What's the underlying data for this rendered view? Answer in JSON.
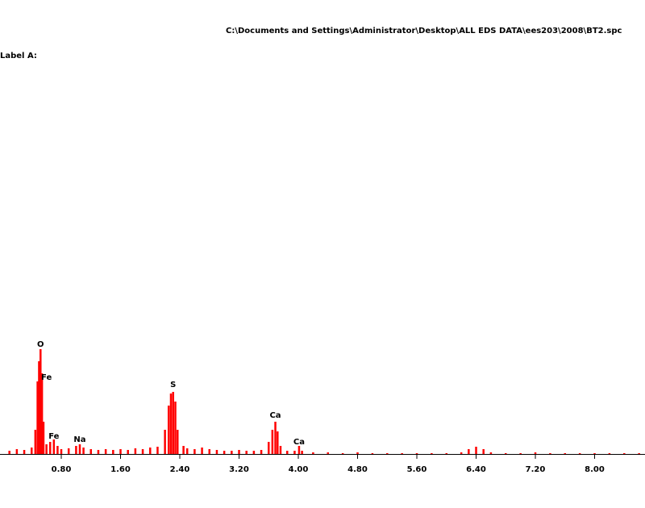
{
  "chart_data": {
    "type": "spectrum",
    "title": "C:\\Documents and Settings\\Administrator\\Desktop\\ALL EDS DATA\\ees203\\2008\\BT2.spc",
    "subtitle": "Label A:",
    "color": "#ff0000",
    "x": [
      0.1,
      0.2,
      0.3,
      0.4,
      0.45,
      0.48,
      0.5,
      0.52,
      0.54,
      0.56,
      0.6,
      0.65,
      0.7,
      0.75,
      0.8,
      0.9,
      1.0,
      1.05,
      1.1,
      1.2,
      1.3,
      1.4,
      1.5,
      1.6,
      1.7,
      1.8,
      1.9,
      2.0,
      2.1,
      2.2,
      2.25,
      2.28,
      2.31,
      2.34,
      2.37,
      2.45,
      2.5,
      2.6,
      2.7,
      2.8,
      2.9,
      3.0,
      3.1,
      3.2,
      3.3,
      3.4,
      3.5,
      3.6,
      3.65,
      3.69,
      3.72,
      3.76,
      3.85,
      3.95,
      4.01,
      4.05,
      4.2,
      4.4,
      4.6,
      4.8,
      5.0,
      5.2,
      5.4,
      5.6,
      5.8,
      6.0,
      6.2,
      6.3,
      6.4,
      6.5,
      6.6,
      6.8,
      7.0,
      7.2,
      7.4,
      7.6,
      7.8,
      8.0,
      8.2,
      8.4,
      8.6
    ],
    "values": [
      4,
      6,
      5,
      8,
      30,
      90,
      115,
      130,
      100,
      40,
      12,
      15,
      18,
      10,
      6,
      7,
      10,
      12,
      8,
      6,
      5,
      6,
      5,
      6,
      5,
      7,
      6,
      8,
      9,
      30,
      60,
      75,
      77,
      65,
      30,
      10,
      7,
      6,
      8,
      6,
      5,
      4,
      4,
      5,
      4,
      4,
      5,
      15,
      30,
      40,
      28,
      10,
      4,
      4,
      10,
      4,
      2,
      2,
      1,
      2,
      1,
      1,
      1,
      1,
      1,
      1,
      2,
      6,
      9,
      6,
      2,
      1,
      1,
      2,
      1,
      1,
      1,
      1,
      1,
      1,
      1
    ],
    "peak_labels": [
      {
        "label": "O",
        "x": 0.52,
        "y": 136
      },
      {
        "label": "Fe",
        "x": 0.6,
        "y": 95
      },
      {
        "label": "Fe",
        "x": 0.7,
        "y": 22
      },
      {
        "label": "Na",
        "x": 1.05,
        "y": 18
      },
      {
        "label": "S",
        "x": 2.31,
        "y": 86
      },
      {
        "label": "Ca",
        "x": 3.69,
        "y": 48
      },
      {
        "label": "Ca",
        "x": 4.01,
        "y": 15
      }
    ],
    "xlim": [
      0,
      8.68
    ],
    "ylim": [
      0,
      140
    ],
    "xticks": [
      {
        "value": 0.8,
        "label": "0.80"
      },
      {
        "value": 1.6,
        "label": "1.60"
      },
      {
        "value": 2.4,
        "label": "2.40"
      },
      {
        "value": 3.2,
        "label": "3.20"
      },
      {
        "value": 4.0,
        "label": "4.00"
      },
      {
        "value": 4.8,
        "label": "4.80"
      },
      {
        "value": 5.6,
        "label": "5.60"
      },
      {
        "value": 6.4,
        "label": "6.40"
      },
      {
        "value": 7.2,
        "label": "7.20"
      },
      {
        "value": 8.0,
        "label": "8.00"
      }
    ]
  }
}
